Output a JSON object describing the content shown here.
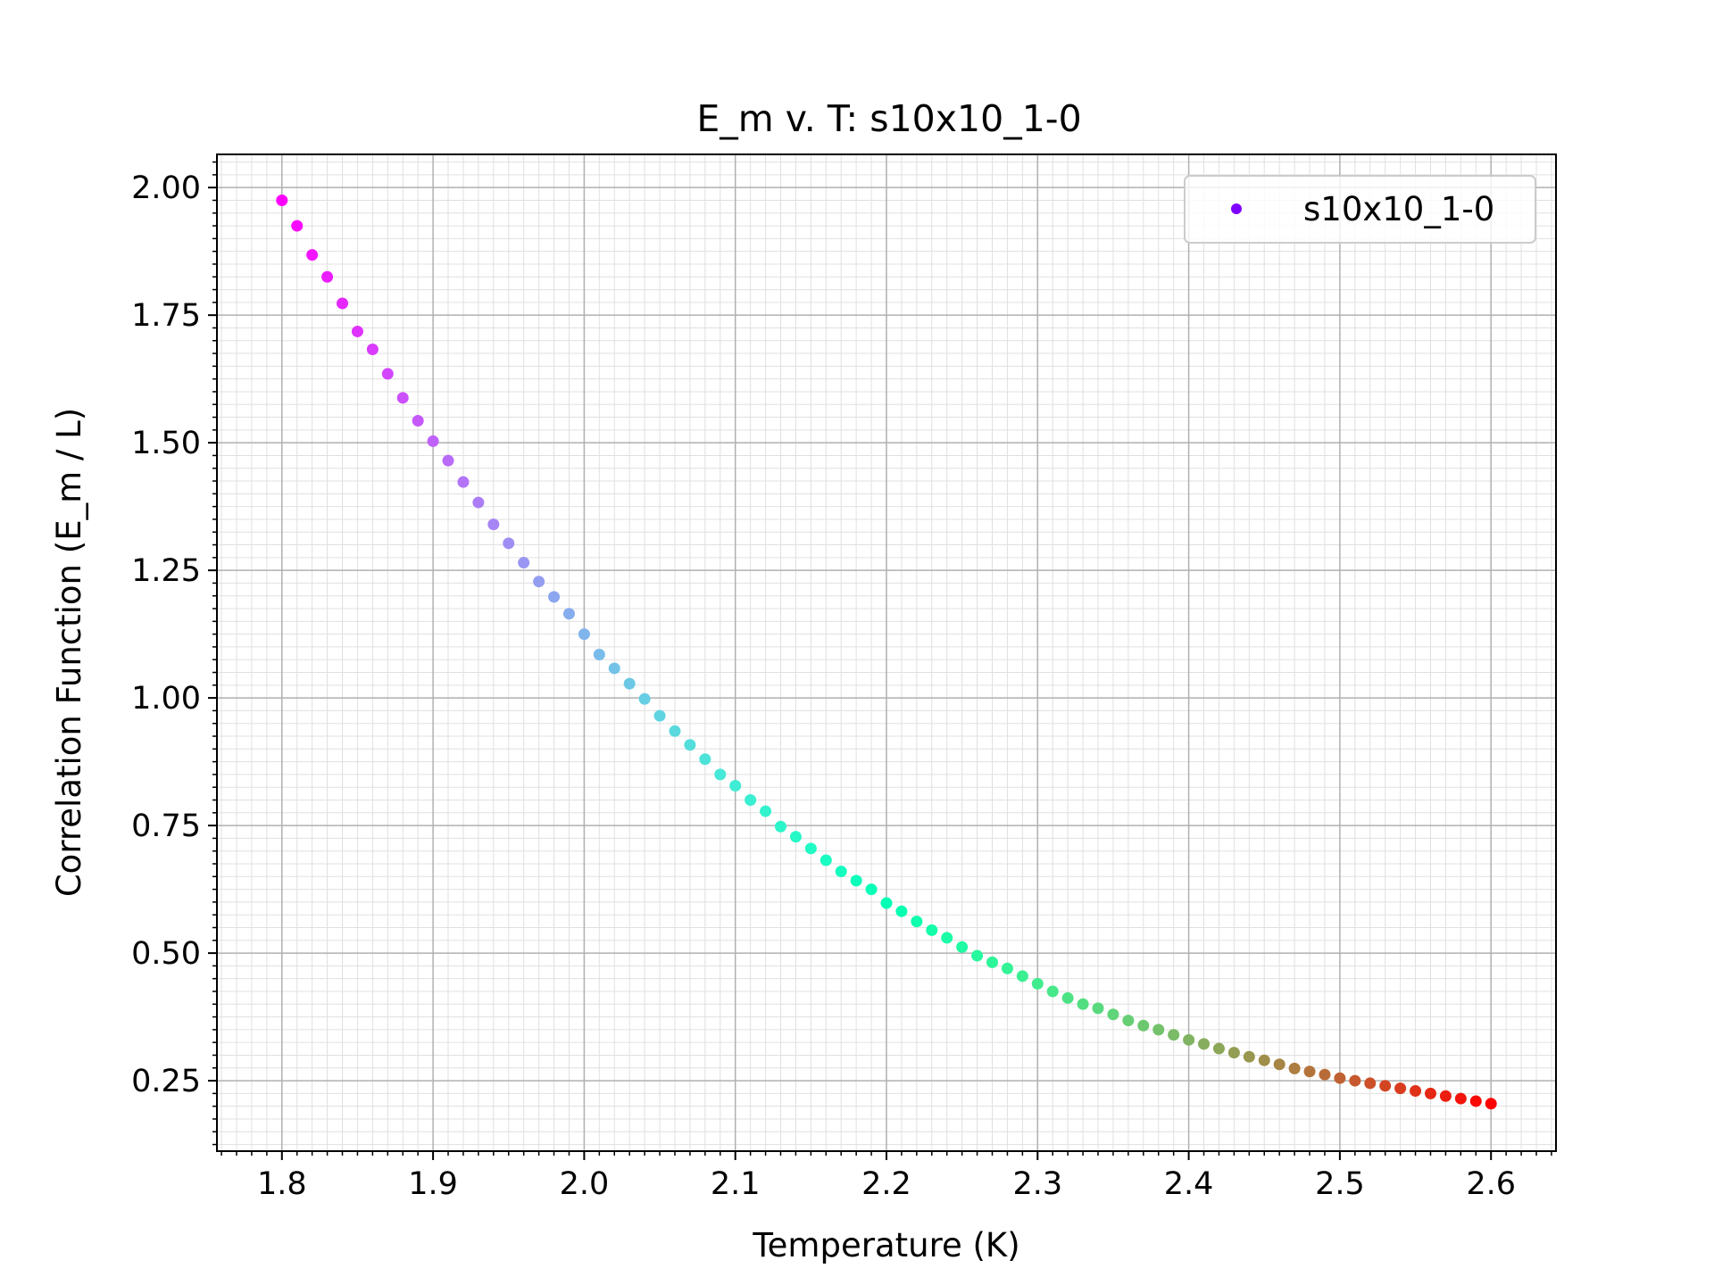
{
  "chart_data": {
    "type": "scatter",
    "title": "E_m v. T: s10x10_1-0",
    "xlabel": "Temperature (K)",
    "ylabel": "Correlation Function (E_m / L)",
    "xlim": [
      1.757,
      2.643
    ],
    "ylim": [
      0.112,
      2.065
    ],
    "grid": true,
    "minor_grid": true,
    "legend": {
      "position": "top-right",
      "entries": [
        "s10x10_1-0"
      ]
    },
    "x_ticks": [
      1.8,
      1.9,
      2.0,
      2.1,
      2.2,
      2.3,
      2.4,
      2.5,
      2.6
    ],
    "x_tick_labels": [
      "1.8",
      "1.9",
      "2.0",
      "2.1",
      "2.2",
      "2.3",
      "2.4",
      "2.5",
      "2.6"
    ],
    "y_ticks": [
      0.25,
      0.5,
      0.75,
      1.0,
      1.25,
      1.5,
      1.75,
      2.0
    ],
    "y_tick_labels": [
      "0.25",
      "0.50",
      "0.75",
      "1.00",
      "1.25",
      "1.50",
      "1.75",
      "2.00"
    ],
    "colormap": "rainbow",
    "series": [
      {
        "name": "s10x10_1-0",
        "x": [
          1.8,
          1.81,
          1.82,
          1.83,
          1.84,
          1.85,
          1.86,
          1.87,
          1.88,
          1.89,
          1.9,
          1.91,
          1.92,
          1.93,
          1.94,
          1.95,
          1.96,
          1.97,
          1.98,
          1.99,
          2.0,
          2.01,
          2.02,
          2.03,
          2.04,
          2.05,
          2.06,
          2.07,
          2.08,
          2.09,
          2.1,
          2.11,
          2.12,
          2.13,
          2.14,
          2.15,
          2.16,
          2.17,
          2.18,
          2.19,
          2.2,
          2.21,
          2.22,
          2.23,
          2.24,
          2.25,
          2.26,
          2.27,
          2.28,
          2.29,
          2.3,
          2.31,
          2.32,
          2.33,
          2.34,
          2.35,
          2.36,
          2.37,
          2.38,
          2.39,
          2.4,
          2.41,
          2.42,
          2.43,
          2.44,
          2.45,
          2.46,
          2.47,
          2.48,
          2.49,
          2.5,
          2.51,
          2.52,
          2.53,
          2.54,
          2.55,
          2.56,
          2.57,
          2.58,
          2.59,
          2.6
        ],
        "y": [
          1.975,
          1.925,
          1.868,
          1.825,
          1.773,
          1.718,
          1.683,
          1.635,
          1.588,
          1.543,
          1.503,
          1.465,
          1.423,
          1.383,
          1.34,
          1.303,
          1.265,
          1.228,
          1.198,
          1.165,
          1.125,
          1.085,
          1.058,
          1.028,
          0.998,
          0.965,
          0.935,
          0.908,
          0.88,
          0.85,
          0.828,
          0.8,
          0.778,
          0.748,
          0.728,
          0.705,
          0.682,
          0.66,
          0.642,
          0.625,
          0.598,
          0.582,
          0.562,
          0.545,
          0.53,
          0.512,
          0.495,
          0.482,
          0.47,
          0.455,
          0.44,
          0.425,
          0.412,
          0.4,
          0.392,
          0.38,
          0.368,
          0.358,
          0.35,
          0.34,
          0.33,
          0.322,
          0.313,
          0.305,
          0.297,
          0.29,
          0.282,
          0.274,
          0.268,
          0.262,
          0.255,
          0.25,
          0.245,
          0.24,
          0.235,
          0.23,
          0.225,
          0.22,
          0.215,
          0.21,
          0.205
        ]
      }
    ]
  }
}
